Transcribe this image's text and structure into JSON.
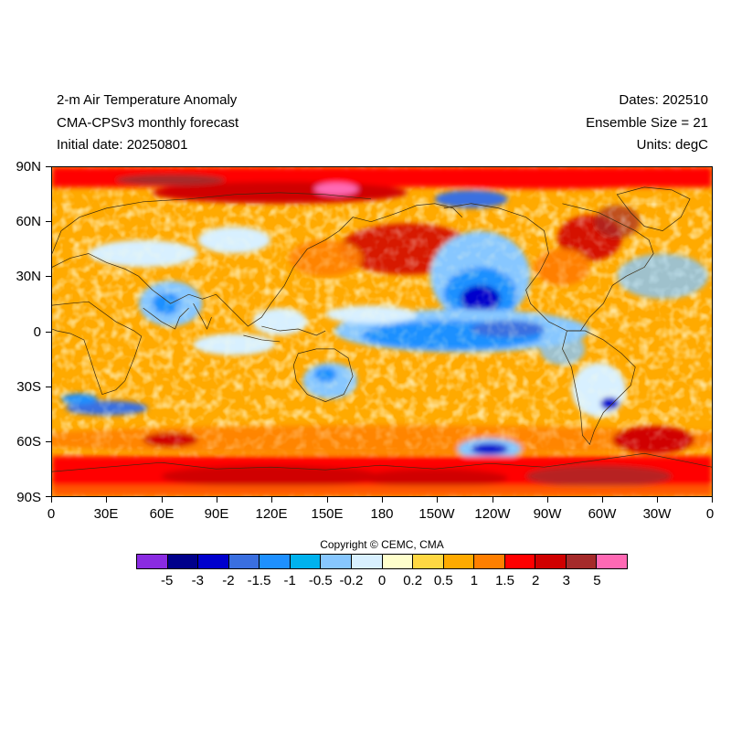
{
  "header": {
    "title_line1": "2-m Air Temperature Anomaly",
    "title_line2": "CMA-CPSv3 monthly forecast",
    "title_line3": "Initial date: 20250801",
    "dates": "Dates: 202510",
    "ensemble": "Ensemble Size = 21",
    "units": "Units: degC"
  },
  "axes": {
    "y_ticks": [
      "90N",
      "60N",
      "30N",
      "0",
      "30S",
      "60S",
      "90S"
    ],
    "x_ticks": [
      "0",
      "30E",
      "60E",
      "90E",
      "120E",
      "150E",
      "180",
      "150W",
      "120W",
      "90W",
      "60W",
      "30W",
      "0"
    ]
  },
  "copyright": "Copyright © CEMC, CMA",
  "colorbar": {
    "labels": [
      "-5",
      "-3",
      "-2",
      "-1.5",
      "-1",
      "-0.5",
      "-0.2",
      "0",
      "0.2",
      "0.5",
      "1",
      "1.5",
      "2",
      "3",
      "5"
    ],
    "colors": [
      "#8a2be2",
      "#00008b",
      "#0000cd",
      "#3a6fe0",
      "#1e90ff",
      "#00b2ee",
      "#87c7ff",
      "#d8f0ff",
      "#ffffcc",
      "#ffd843",
      "#ffaa00",
      "#ff7f00",
      "#ff0000",
      "#d00000",
      "#a52a2a",
      "#ff69b4"
    ]
  },
  "map": {
    "background_color": "#ffaa00",
    "regions": [
      {
        "name": "arctic-warm-band",
        "color": "#ff0000"
      },
      {
        "name": "arctic-hotspot",
        "color": "#ff69b4"
      },
      {
        "name": "antarctic-warm-band",
        "color": "#ff0000"
      },
      {
        "name": "southern-ocean-warm",
        "color": "#ff7f00"
      },
      {
        "name": "pacific-cold-tongue",
        "color": "#1e90ff"
      },
      {
        "name": "north-pacific-cold",
        "color": "#3a6fe0"
      },
      {
        "name": "indian-ocean-cool",
        "color": "#87c7ff"
      },
      {
        "name": "australia-cool",
        "color": "#87c7ff"
      },
      {
        "name": "north-pacific-warm",
        "color": "#d00000"
      }
    ]
  }
}
